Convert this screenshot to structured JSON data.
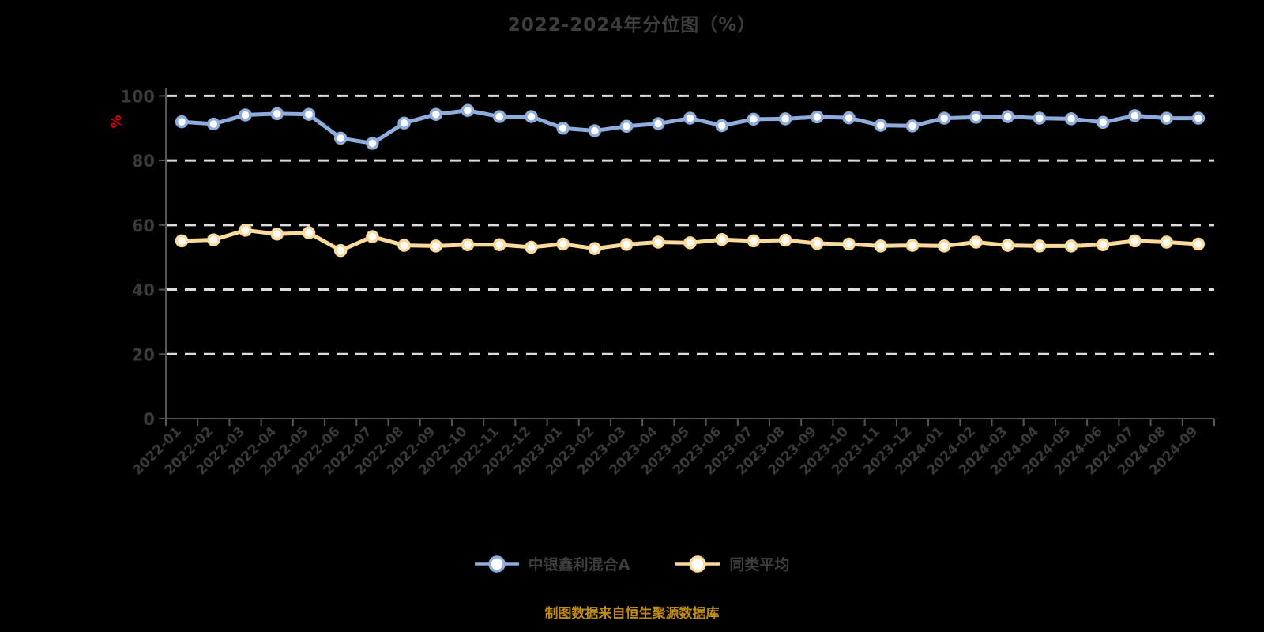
{
  "title": "2022-2024年分位图（%）",
  "y_axis_unit": "%",
  "footer_note": "制图数据来自恒生聚源数据库",
  "palette": {
    "background": "#000000",
    "title_text": "#3d3d3d",
    "axis_line": "#565656",
    "tick_text": "#3a3a3a",
    "gridline": "#dcdcdc",
    "unit_red": "#e80000",
    "footer_orange": "#be8a10",
    "series_blue": "#8eacdc",
    "series_yellow": "#fbdb9b",
    "marker_fill": "#ffffff"
  },
  "chart_data": {
    "type": "line",
    "title": "2022-2024年分位图（%）",
    "ylabel": "%",
    "ylim": [
      0,
      100
    ],
    "yticks": [
      0,
      20,
      40,
      60,
      80,
      100
    ],
    "grid": "horizontal-dashed",
    "legend_position": "bottom",
    "categories": [
      "2022-01",
      "2022-02",
      "2022-03",
      "2022-04",
      "2022-05",
      "2022-06",
      "2022-07",
      "2022-08",
      "2022-09",
      "2022-10",
      "2022-11",
      "2022-12",
      "2023-01",
      "2023-02",
      "2023-03",
      "2023-04",
      "2023-05",
      "2023-06",
      "2023-07",
      "2023-08",
      "2023-09",
      "2023-10",
      "2023-11",
      "2023-12",
      "2024-01",
      "2024-02",
      "2024-03",
      "2024-04",
      "2024-05",
      "2024-06",
      "2024-07",
      "2024-08",
      "2024-09"
    ],
    "series": [
      {
        "name": "中银鑫利混合A",
        "color": "#8eacdc",
        "values": [
          92.0,
          91.3,
          94.1,
          94.5,
          94.3,
          86.9,
          85.3,
          91.6,
          94.3,
          95.5,
          93.6,
          93.6,
          90.0,
          89.2,
          90.6,
          91.4,
          93.1,
          90.8,
          92.8,
          92.9,
          93.5,
          93.2,
          90.9,
          90.7,
          93.1,
          93.4,
          93.6,
          93.1,
          92.9,
          91.8,
          93.9,
          93.1,
          93.1
        ]
      },
      {
        "name": "同类平均",
        "color": "#fbdb9b",
        "values": [
          55.1,
          55.4,
          58.4,
          57.2,
          57.6,
          52.1,
          56.4,
          53.7,
          53.5,
          53.9,
          53.9,
          53.1,
          54.1,
          52.7,
          54.0,
          54.7,
          54.5,
          55.5,
          55.1,
          55.3,
          54.3,
          54.1,
          53.5,
          53.7,
          53.5,
          54.7,
          53.7,
          53.5,
          53.5,
          53.9,
          55.1,
          54.7,
          54.1
        ]
      }
    ]
  }
}
